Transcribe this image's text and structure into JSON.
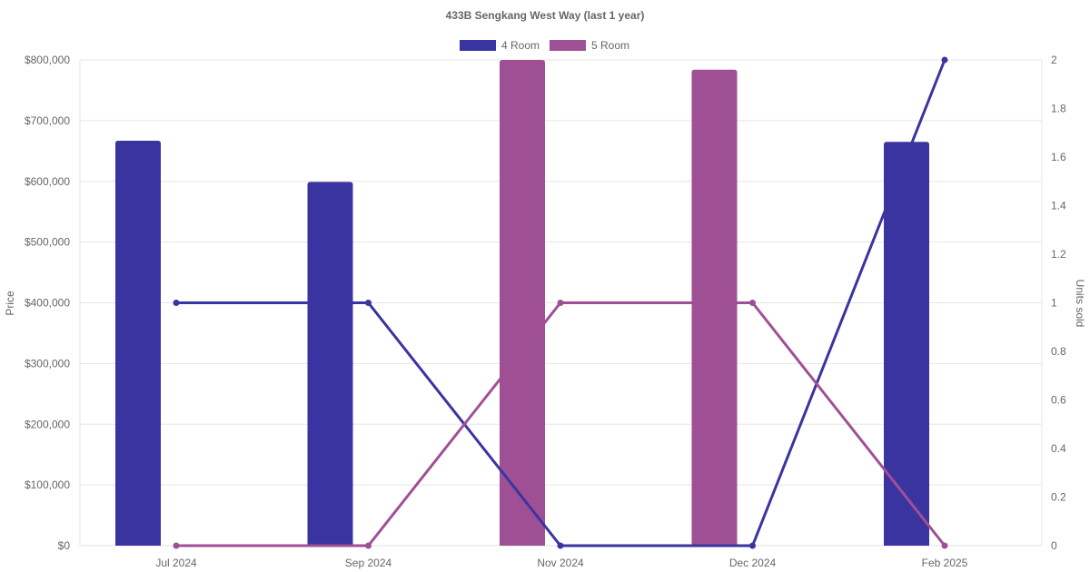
{
  "chart_data": {
    "type": "bar",
    "title": "433B Sengkang West Way (last 1 year)",
    "categories": [
      "Jul 2024",
      "Sep 2024",
      "Nov 2024",
      "Dec 2024",
      "Feb 2025"
    ],
    "series": [
      {
        "name": "4 Room",
        "color": "#3a34a0",
        "price": [
          667000,
          599000,
          null,
          null,
          665000
        ],
        "units_sold": [
          1,
          1,
          0,
          0,
          2
        ]
      },
      {
        "name": "5 Room",
        "color": "#9f5094",
        "price": [
          null,
          null,
          800000,
          784000,
          null
        ],
        "units_sold": [
          0,
          0,
          1,
          1,
          0
        ]
      }
    ],
    "ylabel": "Price",
    "y2label": "Units sold",
    "ylim": [
      0,
      800000
    ],
    "y2lim": [
      0,
      2
    ],
    "y_ticks": [
      "$0",
      "$100,000",
      "$200,000",
      "$300,000",
      "$400,000",
      "$500,000",
      "$600,000",
      "$700,000",
      "$800,000"
    ],
    "y2_ticks": [
      "0",
      "0.2",
      "0.4",
      "0.6",
      "0.8",
      "1",
      "1.2",
      "1.4",
      "1.6",
      "1.8",
      "2"
    ],
    "legend_position": "top-center",
    "grid": true
  }
}
